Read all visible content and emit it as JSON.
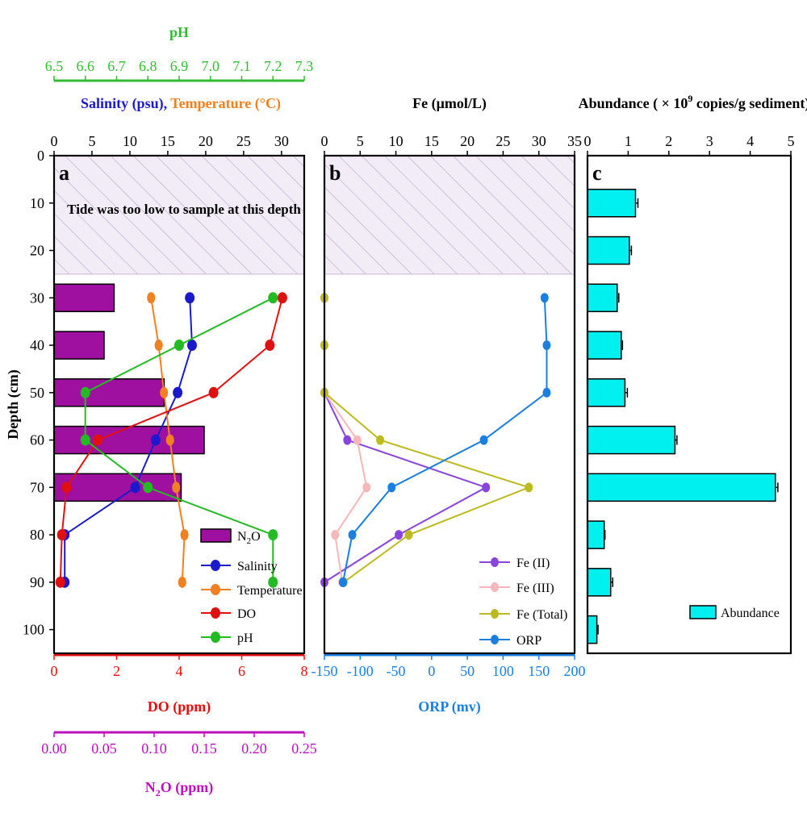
{
  "chart_data": [
    {
      "panel": "a",
      "type": "line",
      "note": "Tide was too low to sample at this depth",
      "depth_axis": {
        "label": "Depth (cm)",
        "range": [
          0,
          105
        ],
        "ticks": [
          0,
          10,
          20,
          30,
          40,
          50,
          60,
          70,
          80,
          90,
          100
        ]
      },
      "sampling_start_depth": 25,
      "axes": {
        "ph": {
          "label": "pH",
          "color": "#33bb33",
          "range": [
            6.5,
            7.3
          ],
          "ticks": [
            "6.5",
            "6.6",
            "6.7",
            "6.8",
            "6.9",
            "7.0",
            "7.1",
            "7.2",
            "7.3"
          ]
        },
        "salinity_temperature": {
          "label_salinity": "Salinity (psu),",
          "label_temperature": " Temperature (°C)",
          "color_salinity": "#1a1acc",
          "color_temperature": "#f08020",
          "range": [
            0,
            33
          ],
          "ticks": [
            "0",
            "5",
            "10",
            "15",
            "20",
            "25",
            "30"
          ]
        },
        "do": {
          "label": "DO (ppm)",
          "color": "#e01010",
          "range": [
            0,
            8
          ],
          "ticks": [
            "0",
            "2",
            "4",
            "6",
            "8"
          ]
        },
        "n2o": {
          "label": "N2O (ppm)",
          "label_main": "N",
          "label_sub": "2",
          "label_tail": "O (ppm)",
          "color": "#bb11bb",
          "range": [
            0,
            0.25
          ],
          "ticks": [
            "0.00",
            "0.05",
            "0.10",
            "0.15",
            "0.20",
            "0.25"
          ]
        }
      },
      "series": [
        {
          "name": "N2O",
          "legend_main": "N",
          "legend_sub": "2",
          "legend_tail": "O",
          "type": "bar",
          "axis": "n2o",
          "color": "#a010a0",
          "depth": [
            30,
            40,
            50,
            60,
            70
          ],
          "values": [
            0.06,
            0.05,
            0.11,
            0.15,
            0.127
          ]
        },
        {
          "name": "Salinity",
          "type": "line",
          "axis": "salinity_temperature",
          "color": "#1a1acc",
          "depth": [
            30,
            40,
            50,
            60,
            70,
            80,
            90
          ],
          "values": [
            17.9,
            18.2,
            16.3,
            13.4,
            10.7,
            1.4,
            1.4
          ]
        },
        {
          "name": "Temperature",
          "type": "line",
          "axis": "salinity_temperature",
          "color": "#f08020",
          "depth": [
            30,
            40,
            50,
            60,
            70,
            80,
            90
          ],
          "values": [
            12.8,
            13.8,
            14.5,
            15.3,
            16.1,
            17.2,
            16.9
          ]
        },
        {
          "name": "DO",
          "type": "line",
          "axis": "do",
          "color": "#e01010",
          "depth": [
            30,
            40,
            50,
            60,
            70,
            80,
            90
          ],
          "values": [
            7.3,
            6.9,
            5.1,
            1.4,
            0.4,
            0.25,
            0.2
          ]
        },
        {
          "name": "pH",
          "type": "line",
          "axis": "ph",
          "color": "#22bb22",
          "depth": [
            30,
            40,
            50,
            60,
            70,
            80,
            90
          ],
          "values": [
            7.2,
            6.9,
            6.6,
            6.6,
            6.8,
            7.2,
            7.2
          ]
        }
      ]
    },
    {
      "panel": "b",
      "type": "line",
      "depth_axis": {
        "range": [
          0,
          105
        ]
      },
      "sampling_start_depth": 25,
      "axes": {
        "fe": {
          "label": "Fe (μmol/L)",
          "color": "#000000",
          "range": [
            0,
            35
          ],
          "ticks": [
            "0",
            "5",
            "10",
            "15",
            "20",
            "25",
            "30",
            "35"
          ]
        },
        "orp": {
          "label": "ORP (mv)",
          "color": "#1a7fe0",
          "range": [
            -150,
            200
          ],
          "ticks": [
            "-150",
            "-100",
            "-50",
            "0",
            "50",
            "100",
            "150",
            "200"
          ]
        }
      },
      "series": [
        {
          "name": "Fe (II)",
          "type": "line",
          "axis": "fe",
          "color": "#8844dd",
          "depth": [
            30,
            40,
            50,
            60,
            70,
            80,
            90
          ],
          "values": [
            0,
            0,
            0,
            3.2,
            22.6,
            10.4,
            0
          ]
        },
        {
          "name": "Fe (III)",
          "type": "line",
          "axis": "fe",
          "color": "#f5b8b8",
          "depth": [
            30,
            40,
            50,
            60,
            70,
            80,
            90
          ],
          "values": [
            0,
            0,
            0,
            4.6,
            5.9,
            1.5,
            2.5
          ]
        },
        {
          "name": "Fe (Total)",
          "type": "line",
          "axis": "fe",
          "color": "#bbbb20",
          "depth": [
            30,
            40,
            50,
            60,
            70,
            80,
            90
          ],
          "values": [
            0,
            0,
            0,
            7.8,
            28.6,
            11.8,
            2.7
          ]
        },
        {
          "name": "ORP",
          "type": "line",
          "axis": "orp",
          "color": "#1a7fe0",
          "depth": [
            30,
            40,
            50,
            60,
            70,
            80,
            90,
            90
          ],
          "values": [
            158,
            161,
            161,
            73,
            -56,
            -111,
            -124,
            -124
          ]
        }
      ]
    },
    {
      "panel": "c",
      "type": "bar",
      "orientation": "horizontal",
      "axis_label_main": "Abundance ( × 10",
      "axis_label_sup": "9",
      "axis_label_tail": " copies/g sediment)",
      "x_range": [
        0,
        5
      ],
      "ticks": [
        "0",
        "1",
        "2",
        "3",
        "4",
        "5"
      ],
      "color": "#00f0f0",
      "series": [
        {
          "name": "Abundance",
          "depth": [
            10,
            20,
            30,
            40,
            50,
            60,
            70,
            80,
            90,
            100
          ],
          "values": [
            1.18,
            1.03,
            0.73,
            0.83,
            0.92,
            2.15,
            4.62,
            0.41,
            0.57,
            0.23
          ],
          "errors": [
            0.06,
            0.05,
            0.04,
            0.03,
            0.06,
            0.05,
            0.06,
            0.02,
            0.05,
            0.03
          ]
        }
      ]
    }
  ]
}
